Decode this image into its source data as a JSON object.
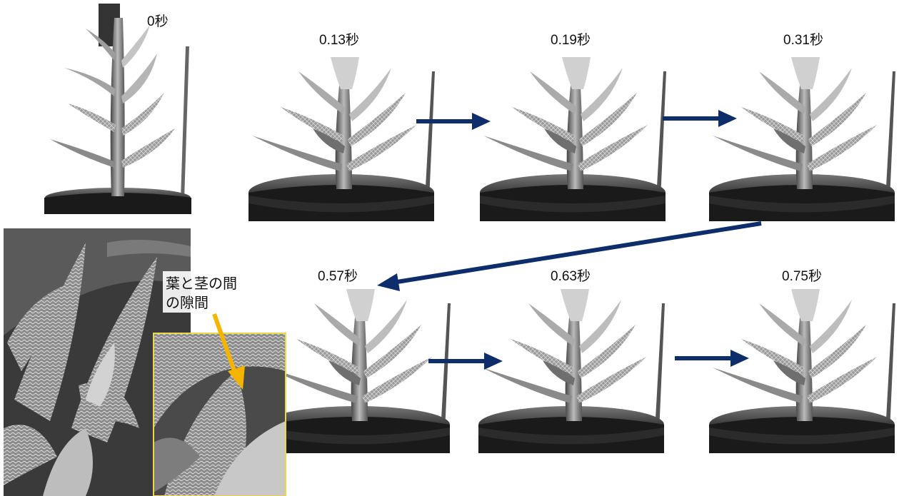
{
  "time_labels": [
    "0秒",
    "0.13秒",
    "0.19秒",
    "0.31秒",
    "0.57秒",
    "0.63秒",
    "0.75秒"
  ],
  "annotation": {
    "line1": "葉と茎の間",
    "line2": "の隙間",
    "arrow_color": "#f5b400"
  },
  "colors": {
    "sequence_arrow": "#0d2d6b",
    "inset_border": "#e8d84a",
    "photo_background": "#ffffff",
    "pot_dark": "#161616",
    "sem_background": "#3a3a3a"
  },
  "icons": {
    "sequence_arrow": "arrow-right-icon",
    "gap_pointer": "arrow-down-icon"
  }
}
